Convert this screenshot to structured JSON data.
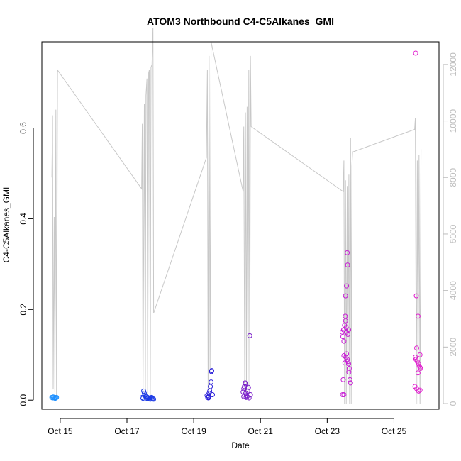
{
  "chart_data": {
    "type": "scatter",
    "title": "ATOM3 Northbound C4-C5Alkanes_GMI",
    "xlabel": "Date",
    "ylabel": "C4-C5Alkanes_GMI",
    "x_unit": "day of October (fractional)",
    "xlim": [
      14.45,
      26.35
    ],
    "ylim": [
      -0.02,
      0.79
    ],
    "y2lim": [
      -200,
      12800
    ],
    "x_ticks": [
      {
        "value": 15,
        "label": "Oct 15"
      },
      {
        "value": 17,
        "label": "Oct 17"
      },
      {
        "value": 19,
        "label": "Oct 19"
      },
      {
        "value": 21,
        "label": "Oct 21"
      },
      {
        "value": 23,
        "label": "Oct 23"
      },
      {
        "value": 25,
        "label": "Oct 25"
      }
    ],
    "y_ticks": [
      {
        "value": 0.0,
        "label": "0.0"
      },
      {
        "value": 0.2,
        "label": "0.2"
      },
      {
        "value": 0.4,
        "label": "0.4"
      },
      {
        "value": 0.6,
        "label": "0.6"
      }
    ],
    "y2_ticks": [
      {
        "value": 0,
        "label": "0"
      },
      {
        "value": 2000,
        "label": "2000"
      },
      {
        "value": 4000,
        "label": "4000"
      },
      {
        "value": 6000,
        "label": "6000"
      },
      {
        "value": 8000,
        "label": "8000"
      },
      {
        "value": 10000,
        "label": "10000"
      },
      {
        "value": 12000,
        "label": "12000"
      }
    ],
    "grid": false,
    "secondary_line": {
      "color": "#c8c8c8",
      "axis": "right",
      "points": [
        [
          14.75,
          8000
        ],
        [
          14.77,
          10200
        ],
        [
          14.79,
          500
        ],
        [
          14.82,
          6600
        ],
        [
          14.84,
          400
        ],
        [
          14.87,
          10400
        ],
        [
          14.89,
          300
        ],
        [
          14.92,
          11800
        ],
        [
          17.44,
          7600
        ],
        [
          17.46,
          9900
        ],
        [
          17.48,
          300
        ],
        [
          17.5,
          5200
        ],
        [
          17.52,
          10600
        ],
        [
          17.55,
          200
        ],
        [
          17.57,
          10900
        ],
        [
          17.6,
          11500
        ],
        [
          17.62,
          200
        ],
        [
          17.65,
          11700
        ],
        [
          17.67,
          11800
        ],
        [
          17.7,
          300
        ],
        [
          17.72,
          11900
        ],
        [
          17.75,
          12000
        ],
        [
          17.78,
          13300
        ],
        [
          17.8,
          3200
        ],
        [
          19.38,
          8700
        ],
        [
          19.41,
          11800
        ],
        [
          19.43,
          500
        ],
        [
          19.46,
          12300
        ],
        [
          19.49,
          1200
        ],
        [
          19.52,
          12800
        ],
        [
          20.48,
          7500
        ],
        [
          20.5,
          9800
        ],
        [
          20.53,
          300
        ],
        [
          20.55,
          10300
        ],
        [
          20.58,
          400
        ],
        [
          20.6,
          10500
        ],
        [
          20.63,
          400
        ],
        [
          20.65,
          11800
        ],
        [
          20.68,
          400
        ],
        [
          20.7,
          12300
        ],
        [
          20.72,
          9800
        ],
        [
          23.48,
          7500
        ],
        [
          23.5,
          8600
        ],
        [
          23.52,
          0
        ],
        [
          23.55,
          7900
        ],
        [
          23.57,
          0
        ],
        [
          23.6,
          7700
        ],
        [
          23.62,
          0
        ],
        [
          23.65,
          8100
        ],
        [
          23.67,
          0
        ],
        [
          23.7,
          9400
        ],
        [
          23.72,
          0
        ],
        [
          23.74,
          8400
        ],
        [
          23.76,
          8900
        ],
        [
          25.62,
          9700
        ],
        [
          25.64,
          10100
        ],
        [
          25.67,
          0
        ],
        [
          25.7,
          8600
        ],
        [
          25.72,
          0
        ],
        [
          25.75,
          8800
        ],
        [
          25.78,
          0
        ],
        [
          25.81,
          9000
        ]
      ]
    },
    "series": [
      {
        "color": "#1e90ff",
        "points": [
          [
            14.75,
            0.006
          ],
          [
            14.77,
            0.005
          ],
          [
            14.79,
            0.007
          ],
          [
            14.81,
            0.005
          ],
          [
            14.83,
            0.006
          ],
          [
            14.85,
            0.004
          ],
          [
            14.87,
            0.005
          ],
          [
            14.89,
            0.006
          ]
        ]
      },
      {
        "color": "#1e3ce6",
        "points": [
          [
            17.5,
            0.02
          ],
          [
            17.52,
            0.015
          ],
          [
            17.54,
            0.01
          ],
          [
            17.56,
            0.008
          ],
          [
            17.58,
            0.005
          ],
          [
            17.6,
            0.004
          ],
          [
            17.62,
            0.006
          ],
          [
            17.64,
            0.005
          ],
          [
            17.66,
            0.003
          ],
          [
            17.68,
            0.004
          ],
          [
            17.7,
            0.002
          ],
          [
            17.72,
            0.005
          ],
          [
            17.74,
            0.006
          ],
          [
            17.76,
            0.004
          ],
          [
            17.78,
            0.003
          ],
          [
            17.8,
            0.002
          ],
          [
            17.46,
            0.006
          ],
          [
            17.48,
            0.004
          ]
        ]
      },
      {
        "color": "#2a1fd8",
        "points": [
          [
            19.4,
            0.01
          ],
          [
            19.42,
            0.006
          ],
          [
            19.44,
            0.005
          ],
          [
            19.46,
            0.015
          ],
          [
            19.48,
            0.02
          ],
          [
            19.5,
            0.03
          ],
          [
            19.52,
            0.04
          ],
          [
            19.53,
            0.063
          ],
          [
            19.54,
            0.065
          ],
          [
            19.56,
            0.012
          ],
          [
            19.45,
            0.008
          ]
        ]
      },
      {
        "color": "#7a1fc9",
        "points": [
          [
            20.48,
            0.018
          ],
          [
            20.5,
            0.025
          ],
          [
            20.52,
            0.03
          ],
          [
            20.54,
            0.038
          ],
          [
            20.55,
            0.036
          ],
          [
            20.56,
            0.015
          ],
          [
            20.58,
            0.01
          ],
          [
            20.6,
            0.008
          ],
          [
            20.62,
            0.02
          ],
          [
            20.64,
            0.028
          ],
          [
            20.66,
            0.005
          ],
          [
            20.68,
            0.142
          ],
          [
            20.7,
            0.012
          ],
          [
            20.5,
            0.008
          ],
          [
            20.57,
            0.006
          ]
        ]
      },
      {
        "color": "#c71fd5",
        "points": [
          [
            23.45,
            0.15
          ],
          [
            23.47,
            0.14
          ],
          [
            23.49,
            0.155
          ],
          [
            23.5,
            0.13
          ],
          [
            23.52,
            0.165
          ],
          [
            23.54,
            0.185
          ],
          [
            23.55,
            0.175
          ],
          [
            23.57,
            0.16
          ],
          [
            23.58,
            0.15
          ],
          [
            23.6,
            0.325
          ],
          [
            23.61,
            0.298
          ],
          [
            23.58,
            0.252
          ],
          [
            23.55,
            0.23
          ],
          [
            23.62,
            0.145
          ],
          [
            23.64,
            0.155
          ],
          [
            23.5,
            0.098
          ],
          [
            23.53,
            0.082
          ],
          [
            23.56,
            0.095
          ],
          [
            23.58,
            0.102
          ],
          [
            23.6,
            0.09
          ],
          [
            23.62,
            0.085
          ],
          [
            23.64,
            0.08
          ],
          [
            23.66,
            0.07
          ],
          [
            23.68,
            0.045
          ],
          [
            23.7,
            0.038
          ],
          [
            23.48,
            0.045
          ],
          [
            23.46,
            0.012
          ],
          [
            23.5,
            0.012
          ],
          [
            23.65,
            0.062
          ]
        ]
      },
      {
        "color": "#e11fcf",
        "points": [
          [
            25.65,
            0.765
          ],
          [
            25.67,
            0.23
          ],
          [
            25.72,
            0.185
          ],
          [
            25.68,
            0.115
          ],
          [
            25.78,
            0.1
          ],
          [
            25.66,
            0.09
          ],
          [
            25.7,
            0.085
          ],
          [
            25.74,
            0.08
          ],
          [
            25.76,
            0.075
          ],
          [
            25.78,
            0.072
          ],
          [
            25.8,
            0.07
          ],
          [
            25.72,
            0.06
          ],
          [
            25.63,
            0.03
          ],
          [
            25.68,
            0.025
          ],
          [
            25.74,
            0.02
          ],
          [
            25.78,
            0.022
          ],
          [
            25.64,
            0.095
          ]
        ]
      }
    ]
  }
}
